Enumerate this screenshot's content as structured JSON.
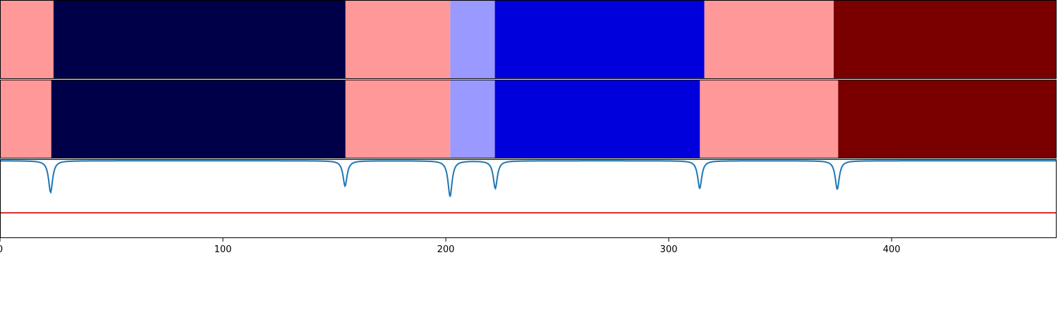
{
  "chart_data": [
    {
      "type": "heatmap",
      "panel": "top-segmentation",
      "segments": [
        {
          "start": 0,
          "end": 24,
          "color": "#ff9999"
        },
        {
          "start": 24,
          "end": 155,
          "color": "#000048"
        },
        {
          "start": 155,
          "end": 202,
          "color": "#ff9999"
        },
        {
          "start": 202,
          "end": 222,
          "color": "#9999ff"
        },
        {
          "start": 222,
          "end": 316,
          "color": "#0000dd"
        },
        {
          "start": 316,
          "end": 374,
          "color": "#ff9999"
        },
        {
          "start": 374,
          "end": 474,
          "color": "#7a0000"
        }
      ]
    },
    {
      "type": "heatmap",
      "panel": "middle-segmentation",
      "segments": [
        {
          "start": 0,
          "end": 23,
          "color": "#ff9999"
        },
        {
          "start": 23,
          "end": 155,
          "color": "#000048"
        },
        {
          "start": 155,
          "end": 202,
          "color": "#ff9999"
        },
        {
          "start": 202,
          "end": 222,
          "color": "#9999ff"
        },
        {
          "start": 222,
          "end": 314,
          "color": "#0000dd"
        },
        {
          "start": 314,
          "end": 376,
          "color": "#ff9999"
        },
        {
          "start": 376,
          "end": 474,
          "color": "#7a0000"
        }
      ]
    },
    {
      "type": "line",
      "panel": "boundary-signal",
      "xlim": [
        0,
        474
      ],
      "ylim": [
        -1.0,
        0.0
      ],
      "grid": false,
      "x_ticks": [
        0,
        100,
        200,
        300,
        400
      ],
      "x_tick_labels": [
        "0",
        "100",
        "200",
        "300",
        "400"
      ],
      "threshold": 0.68,
      "threshold_color": "#d62728",
      "line_color": "#1f77b4",
      "dips": [
        {
          "x": 22.7,
          "depth": 0.4
        },
        {
          "x": 154.8,
          "depth": 0.32
        },
        {
          "x": 201.9,
          "depth": 0.45
        },
        {
          "x": 222.2,
          "depth": 0.35
        },
        {
          "x": 313.9,
          "depth": 0.35
        },
        {
          "x": 375.6,
          "depth": 0.36
        }
      ]
    }
  ]
}
